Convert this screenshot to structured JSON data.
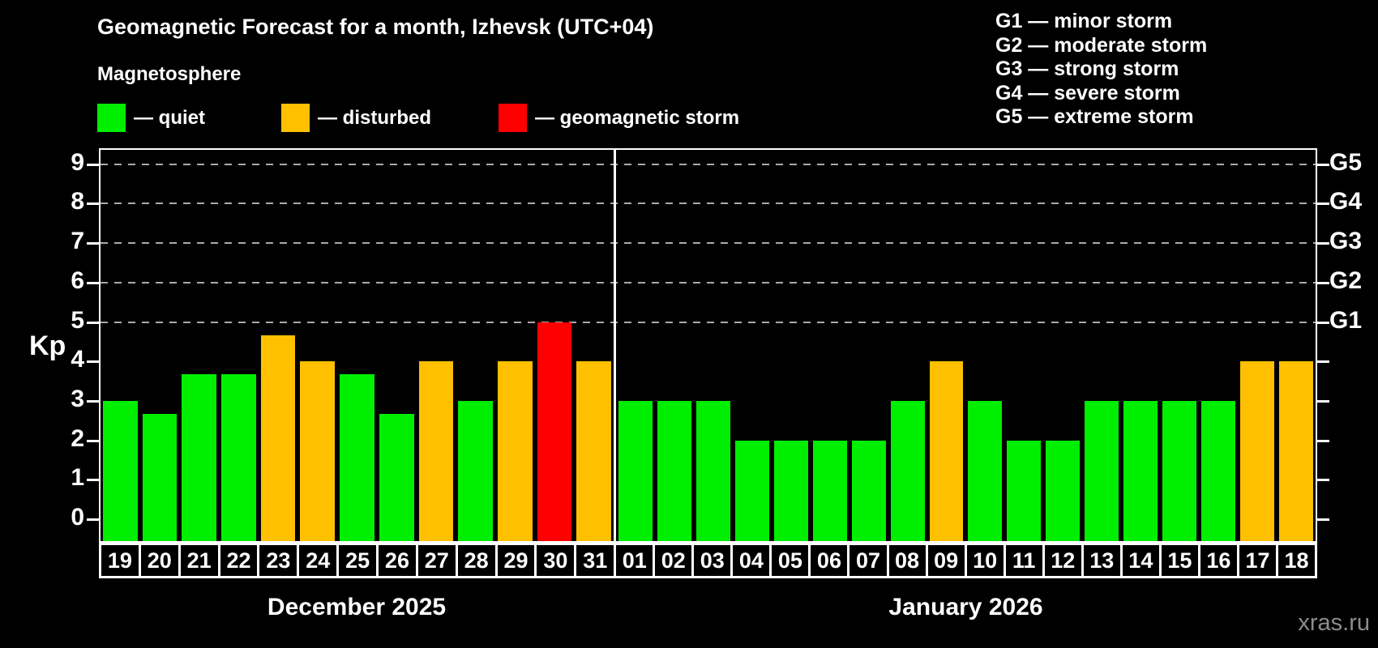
{
  "title": "Geomagnetic Forecast for a month, Izhevsk (UTC+04)",
  "subtitle": "Magnetosphere",
  "watermark": "xras.ru",
  "colors": {
    "background": "#000000",
    "quiet": "#00ee00",
    "disturbed": "#ffc000",
    "storm": "#ff0000",
    "grid": "#aaaaaa",
    "frame": "#ffffff",
    "watermark": "#8c8c8c"
  },
  "legend": {
    "items": [
      {
        "label": "— quiet",
        "status": "quiet",
        "color": "#00ee00"
      },
      {
        "label": "— disturbed",
        "status": "disturbed",
        "color": "#ffc000"
      },
      {
        "label": "— geomagnetic storm",
        "status": "storm",
        "color": "#ff0000"
      }
    ]
  },
  "g_legend": [
    "G1 — minor storm",
    "G2 — moderate storm",
    "G3 — strong storm",
    "G4 — severe storm",
    "G5 — extreme storm"
  ],
  "axes": {
    "y_label": "Kp",
    "y_ticks": [
      "0",
      "1",
      "2",
      "3",
      "4",
      "5",
      "6",
      "7",
      "8",
      "9"
    ],
    "g_ticks": [
      {
        "label": "G1",
        "kp": 5
      },
      {
        "label": "G2",
        "kp": 6
      },
      {
        "label": "G3",
        "kp": 7
      },
      {
        "label": "G4",
        "kp": 8
      },
      {
        "label": "G5",
        "kp": 9
      }
    ]
  },
  "chart_data": {
    "type": "bar",
    "title": "Geomagnetic Forecast for a month, Izhevsk (UTC+04)",
    "xlabel": "",
    "ylabel": "Kp",
    "ylim": [
      0,
      9
    ],
    "grid": "dashed horizontal lines at Kp 5–9 (G1–G5 levels)",
    "gridlines_at": [
      5,
      6,
      7,
      8,
      9
    ],
    "legend_position": "top-left",
    "panels": [
      {
        "month_label": "December 2025",
        "bars": [
          {
            "day": "19",
            "kp": 3.0,
            "status": "quiet"
          },
          {
            "day": "20",
            "kp": 2.67,
            "status": "quiet"
          },
          {
            "day": "21",
            "kp": 3.67,
            "status": "quiet"
          },
          {
            "day": "22",
            "kp": 3.67,
            "status": "quiet"
          },
          {
            "day": "23",
            "kp": 4.67,
            "status": "disturbed"
          },
          {
            "day": "24",
            "kp": 4.0,
            "status": "disturbed"
          },
          {
            "day": "25",
            "kp": 3.67,
            "status": "quiet"
          },
          {
            "day": "26",
            "kp": 2.67,
            "status": "quiet"
          },
          {
            "day": "27",
            "kp": 4.0,
            "status": "disturbed"
          },
          {
            "day": "28",
            "kp": 3.0,
            "status": "quiet"
          },
          {
            "day": "29",
            "kp": 4.0,
            "status": "disturbed"
          },
          {
            "day": "30",
            "kp": 5.0,
            "status": "storm"
          },
          {
            "day": "31",
            "kp": 4.0,
            "status": "disturbed"
          }
        ]
      },
      {
        "month_label": "January 2026",
        "bars": [
          {
            "day": "01",
            "kp": 3.0,
            "status": "quiet"
          },
          {
            "day": "02",
            "kp": 3.0,
            "status": "quiet"
          },
          {
            "day": "03",
            "kp": 3.0,
            "status": "quiet"
          },
          {
            "day": "04",
            "kp": 2.0,
            "status": "quiet"
          },
          {
            "day": "05",
            "kp": 2.0,
            "status": "quiet"
          },
          {
            "day": "06",
            "kp": 2.0,
            "status": "quiet"
          },
          {
            "day": "07",
            "kp": 2.0,
            "status": "quiet"
          },
          {
            "day": "08",
            "kp": 3.0,
            "status": "quiet"
          },
          {
            "day": "09",
            "kp": 4.0,
            "status": "disturbed"
          },
          {
            "day": "10",
            "kp": 3.0,
            "status": "quiet"
          },
          {
            "day": "11",
            "kp": 2.0,
            "status": "quiet"
          },
          {
            "day": "12",
            "kp": 2.0,
            "status": "quiet"
          },
          {
            "day": "13",
            "kp": 3.0,
            "status": "quiet"
          },
          {
            "day": "14",
            "kp": 3.0,
            "status": "quiet"
          },
          {
            "day": "15",
            "kp": 3.0,
            "status": "quiet"
          },
          {
            "day": "16",
            "kp": 3.0,
            "status": "quiet"
          },
          {
            "day": "17",
            "kp": 4.0,
            "status": "disturbed"
          },
          {
            "day": "18",
            "kp": 4.0,
            "status": "disturbed"
          }
        ]
      }
    ]
  }
}
